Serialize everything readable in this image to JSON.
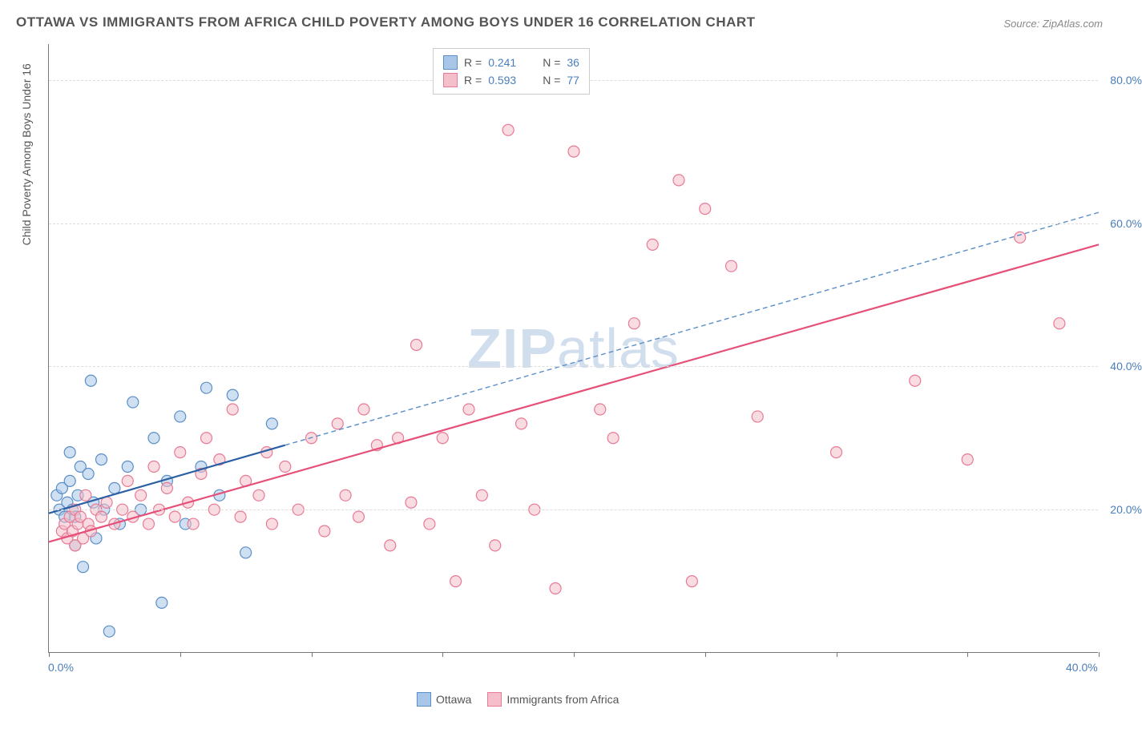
{
  "title": "OTTAWA VS IMMIGRANTS FROM AFRICA CHILD POVERTY AMONG BOYS UNDER 16 CORRELATION CHART",
  "source": "Source: ZipAtlas.com",
  "ylabel": "Child Poverty Among Boys Under 16",
  "watermark": {
    "bold": "ZIP",
    "light": "atlas"
  },
  "chart": {
    "type": "scatter",
    "xlim": [
      0,
      40
    ],
    "ylim": [
      0,
      85
    ],
    "xtick_positions": [
      0,
      5,
      10,
      15,
      20,
      25,
      30,
      35,
      40
    ],
    "xtick_labels": {
      "0": "0.0%",
      "40": "40.0%"
    },
    "ytick_positions": [
      20,
      40,
      60,
      80
    ],
    "ytick_labels": {
      "20": "20.0%",
      "40": "40.0%",
      "60": "60.0%",
      "80": "80.0%"
    },
    "grid_color": "#dddddd",
    "axis_color": "#777777",
    "background_color": "#ffffff",
    "marker_radius": 7,
    "series": [
      {
        "name": "Ottawa",
        "fill": "#a8c6e8",
        "stroke": "#5b8fc7",
        "R": "0.241",
        "N": "36",
        "trend_solid": {
          "x1": 0,
          "y1": 19.5,
          "x2": 9.0,
          "y2": 29.0,
          "color": "#2b5fa3",
          "width": 2.2
        },
        "trend_dashed": {
          "x1": 9.0,
          "y1": 29.0,
          "x2": 40,
          "y2": 61.5,
          "color": "#5b8fc7",
          "width": 1.4,
          "dash": "6,4"
        },
        "points": [
          [
            0.3,
            22
          ],
          [
            0.4,
            20
          ],
          [
            0.5,
            23
          ],
          [
            0.6,
            19
          ],
          [
            0.7,
            21
          ],
          [
            0.8,
            24
          ],
          [
            0.8,
            28
          ],
          [
            0.9,
            20
          ],
          [
            1.0,
            19
          ],
          [
            1.0,
            15
          ],
          [
            1.1,
            22
          ],
          [
            1.2,
            26
          ],
          [
            1.3,
            12
          ],
          [
            1.5,
            25
          ],
          [
            1.6,
            38
          ],
          [
            1.7,
            21
          ],
          [
            1.8,
            16
          ],
          [
            2.0,
            27
          ],
          [
            2.1,
            20
          ],
          [
            2.3,
            3
          ],
          [
            2.5,
            23
          ],
          [
            2.7,
            18
          ],
          [
            3.0,
            26
          ],
          [
            3.2,
            35
          ],
          [
            3.5,
            20
          ],
          [
            4.0,
            30
          ],
          [
            4.3,
            7
          ],
          [
            4.5,
            24
          ],
          [
            5.0,
            33
          ],
          [
            5.2,
            18
          ],
          [
            5.8,
            26
          ],
          [
            6.0,
            37
          ],
          [
            6.5,
            22
          ],
          [
            7.0,
            36
          ],
          [
            7.5,
            14
          ],
          [
            8.5,
            32
          ]
        ]
      },
      {
        "name": "Immigrants from Africa",
        "fill": "#f4bfca",
        "stroke": "#e87a95",
        "R": "0.593",
        "N": "77",
        "trend_solid": {
          "x1": 0,
          "y1": 15.5,
          "x2": 40,
          "y2": 57.0,
          "color": "#e65078",
          "width": 2.2
        },
        "points": [
          [
            0.5,
            17
          ],
          [
            0.6,
            18
          ],
          [
            0.7,
            16
          ],
          [
            0.8,
            19
          ],
          [
            0.9,
            17
          ],
          [
            1.0,
            20
          ],
          [
            1.0,
            15
          ],
          [
            1.1,
            18
          ],
          [
            1.2,
            19
          ],
          [
            1.3,
            16
          ],
          [
            1.4,
            22
          ],
          [
            1.5,
            18
          ],
          [
            1.6,
            17
          ],
          [
            1.8,
            20
          ],
          [
            2.0,
            19
          ],
          [
            2.2,
            21
          ],
          [
            2.5,
            18
          ],
          [
            2.8,
            20
          ],
          [
            3.0,
            24
          ],
          [
            3.2,
            19
          ],
          [
            3.5,
            22
          ],
          [
            3.8,
            18
          ],
          [
            4.0,
            26
          ],
          [
            4.2,
            20
          ],
          [
            4.5,
            23
          ],
          [
            4.8,
            19
          ],
          [
            5.0,
            28
          ],
          [
            5.3,
            21
          ],
          [
            5.5,
            18
          ],
          [
            5.8,
            25
          ],
          [
            6.0,
            30
          ],
          [
            6.3,
            20
          ],
          [
            6.5,
            27
          ],
          [
            7.0,
            34
          ],
          [
            7.3,
            19
          ],
          [
            7.5,
            24
          ],
          [
            8.0,
            22
          ],
          [
            8.3,
            28
          ],
          [
            8.5,
            18
          ],
          [
            9.0,
            26
          ],
          [
            9.5,
            20
          ],
          [
            10.0,
            30
          ],
          [
            10.5,
            17
          ],
          [
            11.0,
            32
          ],
          [
            11.3,
            22
          ],
          [
            11.8,
            19
          ],
          [
            12.0,
            34
          ],
          [
            12.5,
            29
          ],
          [
            13.0,
            15
          ],
          [
            13.3,
            30
          ],
          [
            13.8,
            21
          ],
          [
            14.0,
            43
          ],
          [
            14.5,
            18
          ],
          [
            15.0,
            30
          ],
          [
            15.5,
            10
          ],
          [
            16.0,
            34
          ],
          [
            16.5,
            22
          ],
          [
            17.0,
            15
          ],
          [
            17.5,
            73
          ],
          [
            18.0,
            32
          ],
          [
            18.5,
            20
          ],
          [
            19.3,
            9
          ],
          [
            20.0,
            70
          ],
          [
            21.0,
            34
          ],
          [
            21.5,
            30
          ],
          [
            22.3,
            46
          ],
          [
            23.0,
            57
          ],
          [
            24.0,
            66
          ],
          [
            24.5,
            10
          ],
          [
            25.0,
            62
          ],
          [
            26.0,
            54
          ],
          [
            27.0,
            33
          ],
          [
            30.0,
            28
          ],
          [
            33.0,
            38
          ],
          [
            35.0,
            27
          ],
          [
            37.0,
            58
          ],
          [
            38.5,
            46
          ]
        ]
      }
    ]
  },
  "legend_top": {
    "R_label": "R =",
    "N_label": "N ="
  },
  "legend_bottom": {
    "items": [
      "Ottawa",
      "Immigrants from Africa"
    ]
  }
}
